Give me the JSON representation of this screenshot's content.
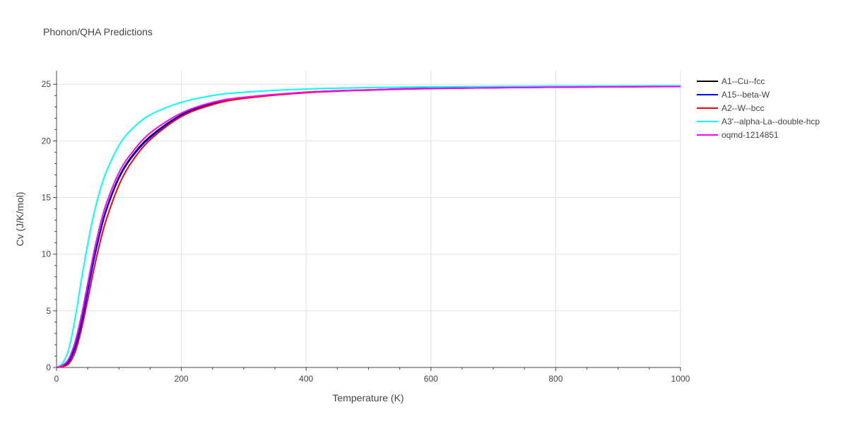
{
  "chart_data": {
    "type": "line",
    "title": "Phonon/QHA Predictions",
    "xlabel": "Temperature (K)",
    "ylabel": "Cv (J/K/mol)",
    "xlim": [
      0,
      1000
    ],
    "ylim": [
      0,
      26.2
    ],
    "xticks": [
      0,
      200,
      400,
      600,
      800,
      1000
    ],
    "yticks": [
      0,
      5,
      10,
      15,
      20,
      25
    ],
    "grid": true,
    "legend_position": "top-right",
    "series": [
      {
        "name": "A1--Cu--fcc",
        "color": "#000000",
        "x": [
          0,
          10,
          20,
          30,
          40,
          50,
          60,
          70,
          80,
          100,
          120,
          150,
          200,
          250,
          300,
          400,
          500,
          600,
          800,
          1000
        ],
        "y": [
          0,
          0.15,
          0.6,
          1.9,
          4.0,
          6.8,
          9.6,
          12.0,
          14.0,
          16.8,
          18.6,
          20.4,
          22.3,
          23.3,
          23.8,
          24.3,
          24.5,
          24.65,
          24.75,
          24.82
        ]
      },
      {
        "name": "A15--beta-W",
        "color": "#0000ff",
        "x": [
          0,
          10,
          20,
          30,
          40,
          50,
          60,
          70,
          80,
          100,
          120,
          150,
          200,
          250,
          300,
          400,
          500,
          600,
          800,
          1000
        ],
        "y": [
          0,
          0.12,
          0.55,
          1.8,
          3.9,
          6.7,
          9.5,
          11.9,
          13.9,
          16.7,
          18.5,
          20.3,
          22.25,
          23.25,
          23.78,
          24.28,
          24.5,
          24.63,
          24.74,
          24.81
        ]
      },
      {
        "name": "A2--W--bcc",
        "color": "#ff0000",
        "x": [
          0,
          10,
          20,
          30,
          40,
          50,
          60,
          70,
          80,
          100,
          120,
          150,
          200,
          250,
          300,
          400,
          500,
          600,
          800,
          1000
        ],
        "y": [
          0,
          0.08,
          0.35,
          1.4,
          3.4,
          6.0,
          8.7,
          11.1,
          13.1,
          16.1,
          18.1,
          20.1,
          22.15,
          23.2,
          23.75,
          24.25,
          24.48,
          24.62,
          24.74,
          24.8
        ]
      },
      {
        "name": "A3'--alpha-La--double-hcp",
        "color": "#00ffff",
        "x": [
          0,
          10,
          20,
          30,
          40,
          50,
          60,
          70,
          80,
          100,
          120,
          150,
          200,
          250,
          300,
          400,
          500,
          600,
          800,
          1000
        ],
        "y": [
          0,
          0.4,
          1.7,
          4.4,
          7.8,
          10.9,
          13.6,
          15.7,
          17.3,
          19.6,
          21.0,
          22.3,
          23.4,
          24.0,
          24.3,
          24.58,
          24.7,
          24.77,
          24.84,
          24.87
        ]
      },
      {
        "name": "oqmd-1214851",
        "color": "#ff00ff",
        "x": [
          0,
          10,
          20,
          30,
          40,
          50,
          60,
          70,
          80,
          100,
          120,
          150,
          200,
          250,
          300,
          400,
          500,
          600,
          800,
          1000
        ],
        "y": [
          0,
          0.2,
          0.8,
          2.3,
          4.6,
          7.4,
          10.2,
          12.6,
          14.5,
          17.2,
          18.9,
          20.7,
          22.45,
          23.4,
          23.85,
          24.3,
          24.5,
          24.63,
          24.74,
          24.8
        ]
      }
    ]
  }
}
